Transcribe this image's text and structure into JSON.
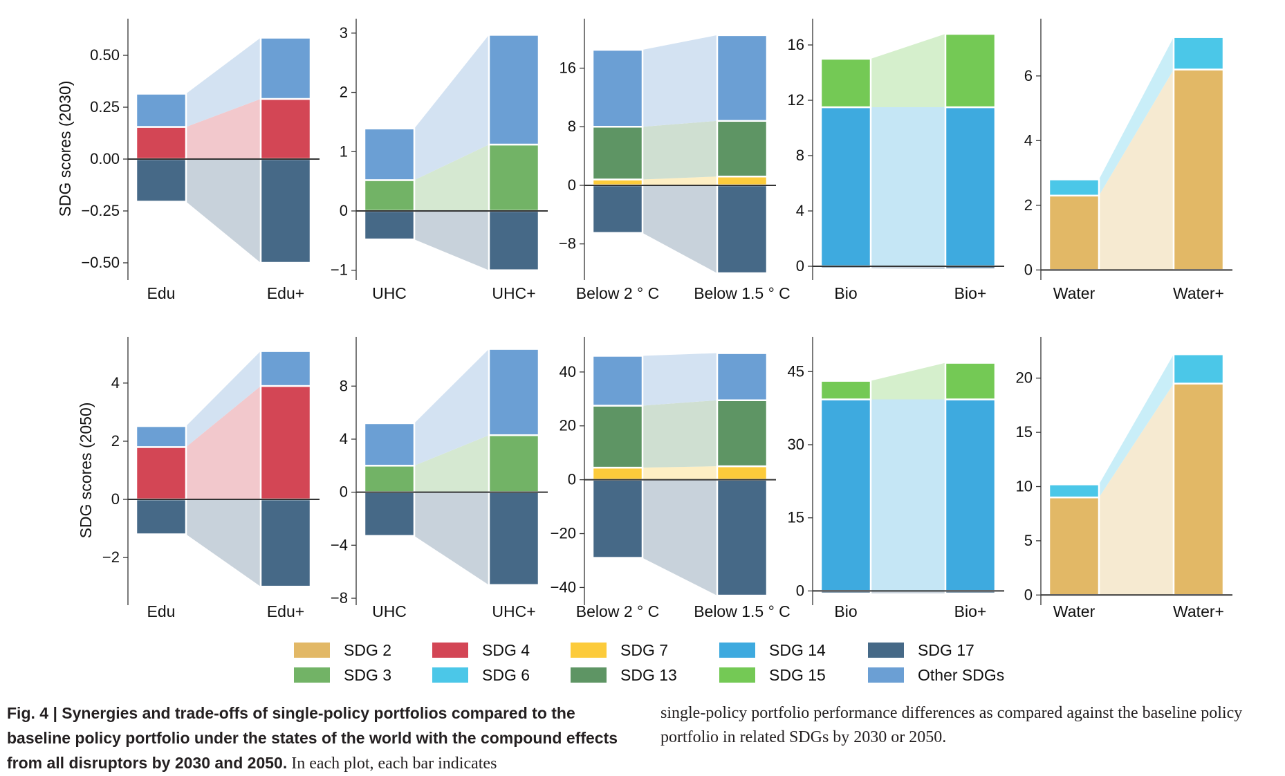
{
  "chart_data": [
    {
      "type": "bar",
      "row": "2030",
      "ylabel": "SDG scores (2030)",
      "ylim": [
        -0.55,
        0.65
      ],
      "yticks": [
        -0.5,
        -0.25,
        0,
        0.25,
        0.5
      ],
      "ytick_labels": [
        "−0.50",
        "−0.25",
        "0.00",
        "0.25",
        "0.50"
      ],
      "categories": [
        "Edu",
        "Edu+"
      ],
      "series": [
        {
          "name": "SDG 4",
          "values": [
            0.155,
            0.29
          ]
        },
        {
          "name": "Other SDGs",
          "values": [
            0.16,
            0.295
          ]
        },
        {
          "name": "SDG 17",
          "values": [
            -0.205,
            -0.5
          ]
        }
      ]
    },
    {
      "type": "bar",
      "row": "2030",
      "ylim": [
        -1.05,
        3.15
      ],
      "yticks": [
        -1,
        0,
        1,
        2,
        3
      ],
      "ytick_labels": [
        "−1",
        "0",
        "1",
        "2",
        "3"
      ],
      "categories": [
        "UHC",
        "UHC+"
      ],
      "series": [
        {
          "name": "SDG 3",
          "values": [
            0.52,
            1.12
          ]
        },
        {
          "name": "Other SDGs",
          "values": [
            0.87,
            1.85
          ]
        },
        {
          "name": "SDG 17",
          "values": [
            -0.48,
            -1.0
          ]
        }
      ]
    },
    {
      "type": "bar",
      "row": "2030",
      "ylim": [
        -12,
        22
      ],
      "yticks": [
        -8,
        0,
        8,
        16
      ],
      "ytick_labels": [
        "−8",
        "0",
        "8",
        "16"
      ],
      "categories": [
        "Below 2 ° C",
        "Below 1.5 ° C"
      ],
      "series": [
        {
          "name": "SDG 7",
          "values": [
            0.8,
            1.2
          ]
        },
        {
          "name": "SDG 13",
          "values": [
            7.2,
            7.6
          ]
        },
        {
          "name": "Other SDGs",
          "values": [
            10.5,
            11.7
          ]
        },
        {
          "name": "SDG 17",
          "values": [
            -6.5,
            -12.0
          ]
        }
      ]
    },
    {
      "type": "bar",
      "row": "2030",
      "ylim": [
        -0.5,
        17.5
      ],
      "yticks": [
        0,
        4,
        8,
        12,
        16
      ],
      "ytick_labels": [
        "0",
        "4",
        "8",
        "12",
        "16"
      ],
      "categories": [
        "Bio",
        "Bio+"
      ],
      "series": [
        {
          "name": "SDG 14",
          "values": [
            11.5,
            11.5
          ]
        },
        {
          "name": "SDG 15",
          "values": [
            3.5,
            5.3
          ]
        },
        {
          "name": "SDG 17",
          "values": [
            -0.15,
            -0.2
          ]
        }
      ]
    },
    {
      "type": "bar",
      "row": "2030",
      "ylim": [
        -0.1,
        7.6
      ],
      "yticks": [
        0,
        2,
        4,
        6
      ],
      "ytick_labels": [
        "0",
        "2",
        "4",
        "6"
      ],
      "categories": [
        "Water",
        "Water+"
      ],
      "series": [
        {
          "name": "SDG 2",
          "values": [
            2.3,
            6.2
          ]
        },
        {
          "name": "SDG 6",
          "values": [
            0.5,
            1.0
          ]
        }
      ]
    },
    {
      "type": "bar",
      "row": "2050",
      "ylabel": "SDG scores (2050)",
      "ylim": [
        -3.4,
        5.4
      ],
      "yticks": [
        -2,
        0,
        2,
        4
      ],
      "ytick_labels": [
        "−2",
        "0",
        "2",
        "4"
      ],
      "categories": [
        "Edu",
        "Edu+"
      ],
      "series": [
        {
          "name": "SDG 4",
          "values": [
            1.8,
            3.9
          ]
        },
        {
          "name": "Other SDGs",
          "values": [
            0.72,
            1.2
          ]
        },
        {
          "name": "SDG 17",
          "values": [
            -1.2,
            -3.0
          ]
        }
      ]
    },
    {
      "type": "bar",
      "row": "2050",
      "ylim": [
        -8,
        11.3
      ],
      "yticks": [
        -8,
        -4,
        0,
        4,
        8
      ],
      "ytick_labels": [
        "−8",
        "−4",
        "0",
        "4",
        "8"
      ],
      "categories": [
        "UHC",
        "UHC+"
      ],
      "series": [
        {
          "name": "SDG 3",
          "values": [
            2.0,
            4.3
          ]
        },
        {
          "name": "Other SDGs",
          "values": [
            3.2,
            6.5
          ]
        },
        {
          "name": "SDG 17",
          "values": [
            -3.3,
            -7.0
          ]
        }
      ]
    },
    {
      "type": "bar",
      "row": "2050",
      "ylim": [
        -44,
        51
      ],
      "yticks": [
        -40,
        -20,
        0,
        20,
        40
      ],
      "ytick_labels": [
        "−40",
        "−20",
        "0",
        "20",
        "40"
      ],
      "categories": [
        "Below 2 ° C",
        "Below 1.5 ° C"
      ],
      "series": [
        {
          "name": "SDG 7",
          "values": [
            4.5,
            5.0
          ]
        },
        {
          "name": "SDG 13",
          "values": [
            23,
            24.5
          ]
        },
        {
          "name": "Other SDGs",
          "values": [
            18.5,
            17.5
          ]
        },
        {
          "name": "SDG 17",
          "values": [
            -29,
            -43
          ]
        }
      ]
    },
    {
      "type": "bar",
      "row": "2050",
      "ylim": [
        -1.5,
        51
      ],
      "yticks": [
        0,
        15,
        30,
        45
      ],
      "ytick_labels": [
        "0",
        "15",
        "30",
        "45"
      ],
      "categories": [
        "Bio",
        "Bio+"
      ],
      "series": [
        {
          "name": "SDG 14",
          "values": [
            39.3,
            39.3
          ]
        },
        {
          "name": "SDG 15",
          "values": [
            3.8,
            7.5
          ]
        },
        {
          "name": "SDG 17",
          "values": [
            -0.5,
            -0.5
          ]
        }
      ]
    },
    {
      "type": "bar",
      "row": "2050",
      "ylim": [
        -0.3,
        23.3
      ],
      "yticks": [
        0,
        5,
        10,
        15,
        20
      ],
      "ytick_labels": [
        "0",
        "5",
        "10",
        "15",
        "20"
      ],
      "categories": [
        "Water",
        "Water+"
      ],
      "series": [
        {
          "name": "SDG 2",
          "values": [
            9.0,
            19.5
          ]
        },
        {
          "name": "SDG 6",
          "values": [
            1.2,
            2.7
          ]
        }
      ]
    }
  ],
  "legend": [
    {
      "name": "SDG 2",
      "color": "#e2b866"
    },
    {
      "name": "SDG 3",
      "color": "#72b366"
    },
    {
      "name": "SDG 4",
      "color": "#d34655"
    },
    {
      "name": "SDG 6",
      "color": "#4bc7e8"
    },
    {
      "name": "SDG 7",
      "color": "#fccb3b"
    },
    {
      "name": "SDG 13",
      "color": "#5e9564"
    },
    {
      "name": "SDG 14",
      "color": "#3eaadf"
    },
    {
      "name": "SDG 15",
      "color": "#74c955"
    },
    {
      "name": "SDG 17",
      "color": "#466987"
    },
    {
      "name": "Other SDGs",
      "color": "#6b9fd4"
    }
  ],
  "caption": {
    "title": "Fig. 4 | Synergies and trade-offs of single-policy portfolios compared to the baseline policy portfolio under the states of the world with the compound effects from all disruptors by 2030 and 2050.",
    "body_start": " In each plot, each bar indicates",
    "body_end": "single-policy portfolio performance differences as compared against the baseline policy portfolio in related SDGs by 2030 or 2050."
  }
}
